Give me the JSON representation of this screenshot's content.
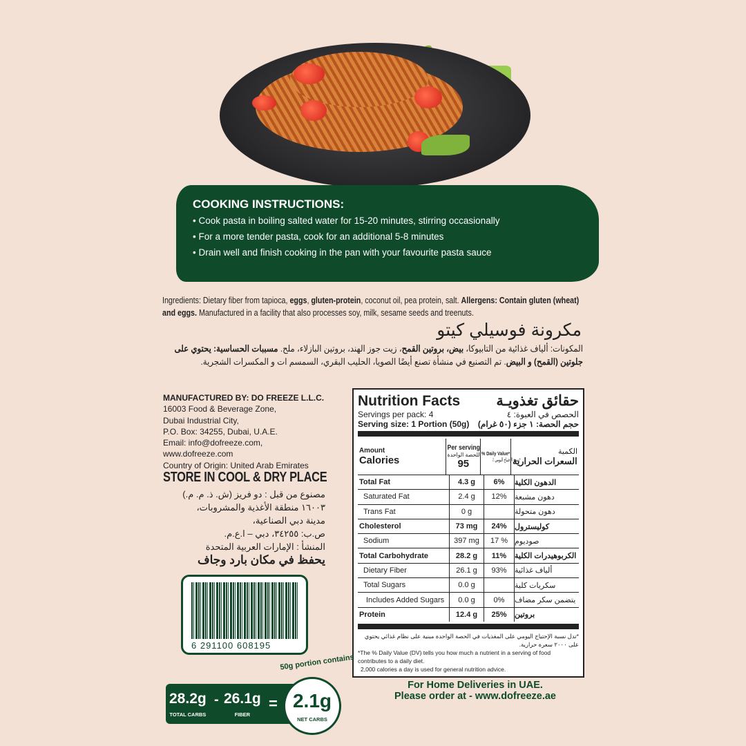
{
  "colors": {
    "background": "#f3e1d5",
    "brand_green": "#0f4a2b"
  },
  "cooking": {
    "title": "COOKING INSTRUCTIONS:",
    "steps": [
      "• Cook pasta in boiling salted water for 15-20 minutes, stirring occasionally",
      "• For a more tender pasta, cook for an additional 5-8 minutes",
      "• Drain well and finish cooking in the pan with your favourite pasta sauce"
    ]
  },
  "ingredients": {
    "p1": "Ingredients: Dietary fiber from tapioca, ",
    "b1": "eggs",
    "p2": ", ",
    "b2": "gluten-protein",
    "p3": ", coconut oil, pea protein, salt. ",
    "b3": "Allergens: Contain gluten (wheat) and  eggs.",
    "p4": " Manufactured in a facility that also processes soy, milk, sesame seeds and treenuts."
  },
  "arabic": {
    "title": "مكرونة فوسيلي كيتو",
    "p1": "المكونات: ألياف غذائية من التابيوكا، ",
    "b1": "بيض، بروتين القمح",
    "p2": "، زيت جوز الهند، بروتين البازلاء، ملح. ",
    "b2": "مسببات الحساسية: يحتوي على جلوتين (القمح)  و البيض",
    "p3": ". تم التصنيع في منشأة تصنع أيضًا الصويا، الحليب البقري، السمسم ات و المكسرات الشجرية."
  },
  "manufacturer": {
    "heading": "MANUFACTURED BY: DO FREEZE L.L.C.",
    "lines": [
      "16003 Food & Beverage Zone,",
      "Dubai Industrial City,",
      "P.O. Box: 34255, Dubai, U.A.E.",
      "Email: info@dofreeze.com,",
      "www.dofreeze.com",
      "Country of Origin: United Arab Emirates"
    ],
    "store": "STORE IN COOL & DRY PLACE"
  },
  "arabic_address": {
    "lines": [
      "مصنوع من قبل : دو فريز (ش. ذ. م. م.)",
      "١٦٠٠٣ منطقة الأغذية والمشروبات،",
      "مدينة دبي الصناعية،",
      "ص.ب: ٣٤٢٥٥، دبي – ا.ع.م.",
      "المنشأ : الإمارات العربية المتحدة"
    ],
    "store": "يحفظ في مكان بارد وجاف"
  },
  "barcode": {
    "number": "6 291100 608195"
  },
  "nutrition": {
    "title": "Nutrition Facts",
    "title_ar": "حقائق تغذويـة",
    "servings": "Servings per pack: 4",
    "servings_ar": "الحصص في العبوة: ٤",
    "size": "Serving size: 1 Portion (50g)",
    "size_ar": "حجم الحصة: ١ جزء (٥٠ غرام)",
    "amount": "Amount",
    "calories": "Calories",
    "per_serving": "Per serving",
    "per_serving_ar": "للحصة الواحدة",
    "calories_value": "95",
    "dv": "% Daily Value*",
    "dv_ar": "*نسبة الإحتياج اليومي ٪",
    "amount_ar": "الكمية",
    "calories_ar": "السعرات الحرارية",
    "rows": [
      {
        "label": "Total Fat",
        "value": "4.3 g",
        "dv": "6%",
        "ar": "الدهون الكلية",
        "bold": true
      },
      {
        "label": "Saturated Fat",
        "value": "2.4 g",
        "dv": "12%",
        "ar": "دهون مشبعة",
        "bold": false
      },
      {
        "label": "Trans Fat",
        "value": "0 g",
        "dv": "",
        "ar": "دهون متحولة",
        "bold": false
      },
      {
        "label": "Cholesterol",
        "value": "73 mg",
        "dv": "24%",
        "ar": "كوليسترول",
        "bold": true
      },
      {
        "label": "Sodium",
        "value": "397 mg",
        "dv": "17 %",
        "ar": "صوديوم",
        "bold": false
      },
      {
        "label": "Total Carbohydrate",
        "value": "28.2 g",
        "dv": "11%",
        "ar": "الكربوهيدرات الكلية",
        "bold": true
      },
      {
        "label": "Dietary Fiber",
        "value": "26.1 g",
        "dv": "93%",
        "ar": "ألياف غذائية",
        "bold": false
      },
      {
        "label": "Total Sugars",
        "value": "0.0 g",
        "dv": "",
        "ar": "سكريات كلية",
        "bold": false
      },
      {
        "label": "Includes Added Sugars",
        "value": "0.0 g",
        "dv": "0%",
        "ar": "يتضمن سكر مضاف",
        "bold": false,
        "indent2": true
      },
      {
        "label": "Protein",
        "value": "12.4 g",
        "dv": "25%",
        "ar": "بروتين",
        "bold": true
      }
    ],
    "foot_ar": "*تدل نسبة الإحتياج اليومي على المغذيات في الحصة الواحدة مبنية على نظام غذائي يحتوي على ٢٠٠٠ سعرة حرارية.",
    "foot_en1": "*The % Daily Value (DV) tells you how much a nutrient in a serving of food contributes to a daily diet.",
    "foot_en2": "2,000 calories a day is used for general nutrition advice."
  },
  "net_carbs": {
    "total": "28.2g",
    "total_label": "TOTAL CARBS",
    "minus": "-",
    "fiber": "26.1g",
    "fiber_label": "FIBER",
    "equals": "=",
    "net": "2.1g",
    "net_label": "NET CARBS",
    "arc": "50g portion contains"
  },
  "delivery": {
    "line1": "For Home Deliveries in UAE.",
    "line2": "Please order at - www.dofreeze.ae"
  }
}
